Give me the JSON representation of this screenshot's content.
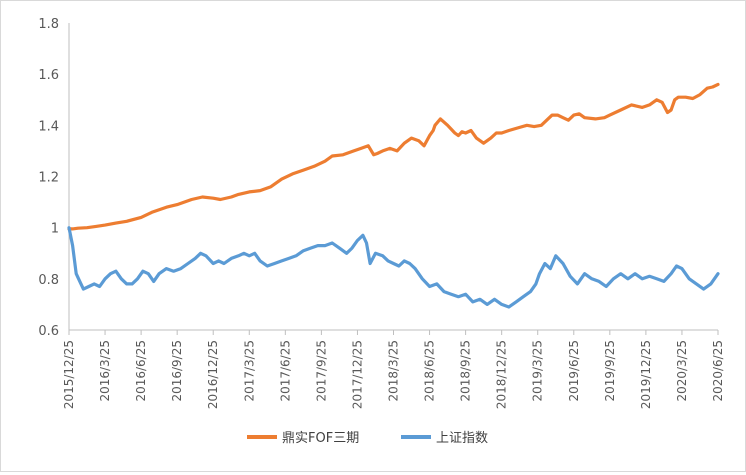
{
  "chart_data": {
    "type": "line",
    "title": "",
    "xlabel": "",
    "ylabel": "",
    "ylim": [
      0.6,
      1.8
    ],
    "yticks": [
      0.6,
      0.8,
      1,
      1.2,
      1.4,
      1.6,
      1.8
    ],
    "ytick_labels": [
      "0.6",
      "0.8",
      "1",
      "1.2",
      "1.4",
      "1.6",
      "1.8"
    ],
    "categories": [
      "2015/12/25",
      "2016/3/25",
      "2016/6/25",
      "2016/9/25",
      "2016/12/25",
      "2017/3/25",
      "2017/6/25",
      "2017/9/25",
      "2017/12/25",
      "2018/3/25",
      "2018/6/25",
      "2018/9/25",
      "2018/12/25",
      "2019/3/25",
      "2019/6/25",
      "2019/9/25",
      "2019/12/25",
      "2020/3/25",
      "2020/6/25"
    ],
    "grid": false,
    "legend_position": "bottom",
    "series": [
      {
        "name": "鼎实FOF三期",
        "color": "#ED7D31",
        "x": [
          0,
          0.1,
          0.25,
          0.5,
          0.75,
          1,
          1.3,
          1.6,
          2,
          2.3,
          2.7,
          3,
          3.4,
          3.7,
          4,
          4.2,
          4.5,
          4.7,
          5,
          5.3,
          5.6,
          5.9,
          6.2,
          6.5,
          6.8,
          7.1,
          7.3,
          7.6,
          7.9,
          8.1,
          8.3,
          8.45,
          8.55,
          8.7,
          8.9,
          9.1,
          9.3,
          9.5,
          9.7,
          9.85,
          10,
          10.1,
          10.15,
          10.3,
          10.5,
          10.7,
          10.8,
          10.9,
          11,
          11.15,
          11.3,
          11.5,
          11.7,
          11.85,
          12,
          12.2,
          12.45,
          12.7,
          12.9,
          13.1,
          13.25,
          13.4,
          13.55,
          13.7,
          13.85,
          14,
          14.15,
          14.3,
          14.6,
          14.85,
          15,
          15.3,
          15.6,
          15.9,
          16.1,
          16.3,
          16.45,
          16.6,
          16.7,
          16.8,
          16.9,
          17.1,
          17.3,
          17.5,
          17.7,
          17.85,
          18
        ],
        "values": [
          0.995,
          0.995,
          0.998,
          1.0,
          1.005,
          1.01,
          1.018,
          1.025,
          1.04,
          1.06,
          1.08,
          1.09,
          1.11,
          1.12,
          1.115,
          1.11,
          1.12,
          1.13,
          1.14,
          1.145,
          1.16,
          1.19,
          1.21,
          1.225,
          1.24,
          1.26,
          1.28,
          1.285,
          1.3,
          1.31,
          1.32,
          1.285,
          1.29,
          1.3,
          1.31,
          1.3,
          1.33,
          1.35,
          1.34,
          1.32,
          1.36,
          1.38,
          1.4,
          1.425,
          1.4,
          1.37,
          1.36,
          1.375,
          1.37,
          1.38,
          1.35,
          1.33,
          1.35,
          1.37,
          1.37,
          1.38,
          1.39,
          1.4,
          1.395,
          1.4,
          1.42,
          1.44,
          1.44,
          1.43,
          1.42,
          1.44,
          1.445,
          1.43,
          1.425,
          1.43,
          1.44,
          1.46,
          1.48,
          1.47,
          1.48,
          1.5,
          1.49,
          1.45,
          1.46,
          1.5,
          1.51,
          1.51,
          1.505,
          1.52,
          1.545,
          1.55,
          1.56
        ]
      },
      {
        "name": "上证指数",
        "color": "#5B9BD5",
        "x": [
          0,
          0.1,
          0.2,
          0.3,
          0.4,
          0.55,
          0.7,
          0.85,
          1,
          1.15,
          1.3,
          1.45,
          1.6,
          1.75,
          1.9,
          2.05,
          2.2,
          2.35,
          2.5,
          2.7,
          2.9,
          3.1,
          3.3,
          3.5,
          3.65,
          3.8,
          4,
          4.15,
          4.3,
          4.5,
          4.7,
          4.85,
          5,
          5.15,
          5.3,
          5.5,
          5.7,
          5.9,
          6.1,
          6.3,
          6.5,
          6.7,
          6.9,
          7.1,
          7.3,
          7.5,
          7.7,
          7.85,
          8,
          8.15,
          8.25,
          8.35,
          8.5,
          8.7,
          8.85,
          9,
          9.15,
          9.3,
          9.45,
          9.6,
          9.8,
          10,
          10.2,
          10.4,
          10.6,
          10.8,
          11,
          11.2,
          11.4,
          11.6,
          11.8,
          12,
          12.2,
          12.4,
          12.6,
          12.8,
          12.95,
          13.05,
          13.2,
          13.35,
          13.5,
          13.7,
          13.9,
          14.1,
          14.3,
          14.5,
          14.7,
          14.9,
          15.1,
          15.3,
          15.5,
          15.7,
          15.9,
          16.1,
          16.3,
          16.5,
          16.7,
          16.85,
          17,
          17.2,
          17.4,
          17.6,
          17.8,
          18
        ],
        "values": [
          1.0,
          0.93,
          0.82,
          0.79,
          0.76,
          0.77,
          0.78,
          0.77,
          0.8,
          0.82,
          0.83,
          0.8,
          0.78,
          0.78,
          0.8,
          0.83,
          0.82,
          0.79,
          0.82,
          0.84,
          0.83,
          0.84,
          0.86,
          0.88,
          0.9,
          0.89,
          0.86,
          0.87,
          0.86,
          0.88,
          0.89,
          0.9,
          0.89,
          0.9,
          0.87,
          0.85,
          0.86,
          0.87,
          0.88,
          0.89,
          0.91,
          0.92,
          0.93,
          0.93,
          0.94,
          0.92,
          0.9,
          0.92,
          0.95,
          0.97,
          0.94,
          0.86,
          0.9,
          0.89,
          0.87,
          0.86,
          0.85,
          0.87,
          0.86,
          0.84,
          0.8,
          0.77,
          0.78,
          0.75,
          0.74,
          0.73,
          0.74,
          0.71,
          0.72,
          0.7,
          0.72,
          0.7,
          0.69,
          0.71,
          0.73,
          0.75,
          0.78,
          0.82,
          0.86,
          0.84,
          0.89,
          0.86,
          0.81,
          0.78,
          0.82,
          0.8,
          0.79,
          0.77,
          0.8,
          0.82,
          0.8,
          0.82,
          0.8,
          0.81,
          0.8,
          0.79,
          0.82,
          0.85,
          0.84,
          0.8,
          0.78,
          0.76,
          0.78,
          0.82
        ]
      }
    ]
  }
}
